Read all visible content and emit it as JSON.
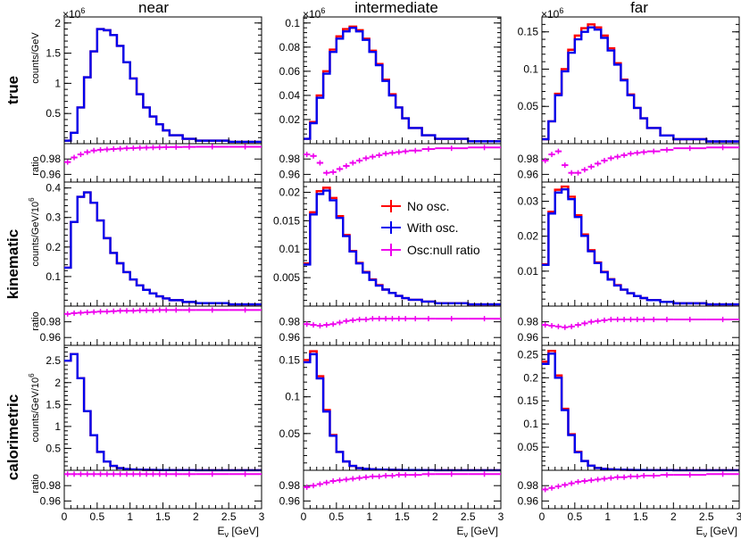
{
  "chart_data": {
    "type": "histogram-grid",
    "columns": [
      "near",
      "intermediate",
      "far"
    ],
    "rows": [
      "true",
      "kinematic",
      "calorimetric"
    ],
    "xlabel": "Eν [GeV]",
    "xlabel_main": "E",
    "xlabel_sub": "ν",
    "xlabel_unit": " [GeV]",
    "xlim": [
      0,
      3
    ],
    "xticks": [
      "0",
      "0.5",
      "1",
      "1.5",
      "2",
      "2.5",
      "3"
    ],
    "bin_edges": [
      0.0,
      0.1,
      0.2,
      0.3,
      0.4,
      0.5,
      0.6,
      0.7,
      0.8,
      0.9,
      1.0,
      1.1,
      1.2,
      1.3,
      1.4,
      1.5,
      1.6,
      1.8,
      2.0,
      2.5,
      3.0
    ],
    "ylabels": {
      "true": "counts/GeV",
      "kinematic": "counts/GeV/10",
      "calorimetric": "counts/GeV/10",
      "exponent": "6",
      "ratio": "ratio"
    },
    "multiplier_label": "×10",
    "multiplier_exp": "6",
    "ratio_ylim": [
      0.95,
      1.0
    ],
    "ratio_yticks": [
      "0.98",
      "0.96"
    ],
    "legend": [
      {
        "label": "No osc.",
        "color": "#ff0000"
      },
      {
        "label": "With osc.",
        "color": "#0000ee"
      },
      {
        "label": "Osc:null ratio",
        "color": "#ee00ee"
      }
    ],
    "colors": {
      "no_osc": "#ff0000",
      "with_osc": "#0000ee",
      "ratio": "#ee00ee"
    },
    "panels": [
      {
        "row": "true",
        "col": "near",
        "ylim": [
          0,
          2.1
        ],
        "yticks": [
          "0.5",
          "1",
          "1.5",
          "2"
        ],
        "multiplier": true,
        "no_osc": [
          0.05,
          0.18,
          0.6,
          1.1,
          1.53,
          1.9,
          1.88,
          1.8,
          1.62,
          1.35,
          1.08,
          0.82,
          0.6,
          0.45,
          0.32,
          0.22,
          0.14,
          0.08,
          0.05,
          0.03
        ],
        "with_osc": [
          0.05,
          0.18,
          0.6,
          1.1,
          1.53,
          1.9,
          1.88,
          1.8,
          1.62,
          1.35,
          1.08,
          0.82,
          0.6,
          0.45,
          0.32,
          0.22,
          0.14,
          0.08,
          0.05,
          0.03
        ],
        "ratio": [
          0.976,
          0.982,
          0.986,
          0.989,
          0.991,
          0.992,
          0.9925,
          0.993,
          0.9935,
          0.994,
          0.9943,
          0.9946,
          0.9948,
          0.995,
          0.9952,
          0.9954,
          0.9956,
          0.9958,
          0.996,
          0.996
        ]
      },
      {
        "row": "true",
        "col": "intermediate",
        "ylim": [
          0,
          0.105
        ],
        "yticks": [
          "0.02",
          "0.04",
          "0.06",
          "0.08",
          "0.1"
        ],
        "multiplier": true,
        "no_osc": [
          0.004,
          0.018,
          0.04,
          0.06,
          0.078,
          0.089,
          0.095,
          0.097,
          0.094,
          0.087,
          0.077,
          0.066,
          0.053,
          0.041,
          0.03,
          0.021,
          0.013,
          0.007,
          0.004,
          0.002
        ],
        "with_osc": [
          0.004,
          0.017,
          0.038,
          0.058,
          0.076,
          0.087,
          0.093,
          0.096,
          0.093,
          0.086,
          0.076,
          0.065,
          0.052,
          0.04,
          0.03,
          0.021,
          0.013,
          0.007,
          0.004,
          0.002
        ],
        "ratio": [
          0.986,
          0.984,
          0.975,
          0.962,
          0.963,
          0.967,
          0.971,
          0.975,
          0.978,
          0.981,
          0.983,
          0.985,
          0.987,
          0.988,
          0.989,
          0.99,
          0.991,
          0.993,
          0.994,
          0.995
        ]
      },
      {
        "row": "true",
        "col": "far",
        "ylim": [
          0,
          0.17
        ],
        "yticks": [
          "0.05",
          "0.1",
          "0.15"
        ],
        "multiplier": true,
        "no_osc": [
          0.006,
          0.03,
          0.067,
          0.1,
          0.126,
          0.145,
          0.155,
          0.16,
          0.156,
          0.145,
          0.128,
          0.108,
          0.086,
          0.066,
          0.048,
          0.034,
          0.021,
          0.011,
          0.006,
          0.003
        ],
        "with_osc": [
          0.006,
          0.03,
          0.065,
          0.097,
          0.122,
          0.14,
          0.15,
          0.156,
          0.153,
          0.142,
          0.125,
          0.106,
          0.085,
          0.065,
          0.048,
          0.034,
          0.021,
          0.011,
          0.006,
          0.003
        ],
        "ratio": [
          0.978,
          0.986,
          0.99,
          0.972,
          0.962,
          0.962,
          0.966,
          0.97,
          0.974,
          0.978,
          0.981,
          0.983,
          0.985,
          0.987,
          0.988,
          0.989,
          0.99,
          0.992,
          0.994,
          0.995
        ]
      },
      {
        "row": "kinematic",
        "col": "near",
        "ylim": [
          0,
          0.42
        ],
        "yticks": [
          "0.1",
          "0.2",
          "0.3",
          "0.4"
        ],
        "multiplier": false,
        "no_osc": [
          0.13,
          0.285,
          0.37,
          0.385,
          0.35,
          0.29,
          0.23,
          0.18,
          0.145,
          0.115,
          0.09,
          0.07,
          0.055,
          0.043,
          0.033,
          0.026,
          0.02,
          0.014,
          0.01,
          0.006
        ],
        "with_osc": [
          0.13,
          0.285,
          0.37,
          0.385,
          0.35,
          0.29,
          0.23,
          0.18,
          0.145,
          0.115,
          0.09,
          0.07,
          0.055,
          0.043,
          0.033,
          0.026,
          0.02,
          0.014,
          0.01,
          0.006
        ],
        "ratio": [
          0.99,
          0.991,
          0.9915,
          0.992,
          0.9925,
          0.993,
          0.993,
          0.9935,
          0.994,
          0.994,
          0.994,
          0.9945,
          0.9945,
          0.9945,
          0.995,
          0.995,
          0.995,
          0.995,
          0.995,
          0.995
        ]
      },
      {
        "row": "kinematic",
        "col": "intermediate",
        "ylim": [
          0,
          0.0218
        ],
        "yticks": [
          "0.005",
          "0.01",
          "0.015",
          "0.02"
        ],
        "multiplier": false,
        "no_osc": [
          0.0075,
          0.0165,
          0.0202,
          0.0208,
          0.019,
          0.0158,
          0.0125,
          0.0097,
          0.0076,
          0.006,
          0.0047,
          0.0037,
          0.0029,
          0.0023,
          0.0018,
          0.0014,
          0.0011,
          0.0008,
          0.0005,
          0.0003
        ],
        "with_osc": [
          0.0073,
          0.0161,
          0.0197,
          0.0203,
          0.0186,
          0.0155,
          0.0123,
          0.0096,
          0.0075,
          0.0059,
          0.0046,
          0.0036,
          0.0029,
          0.0023,
          0.0018,
          0.0014,
          0.0011,
          0.0008,
          0.0005,
          0.0003
        ],
        "ratio": [
          0.977,
          0.976,
          0.975,
          0.976,
          0.977,
          0.979,
          0.981,
          0.982,
          0.983,
          0.983,
          0.984,
          0.984,
          0.984,
          0.984,
          0.984,
          0.984,
          0.984,
          0.984,
          0.984,
          0.984
        ]
      },
      {
        "row": "kinematic",
        "col": "far",
        "ylim": [
          0,
          0.0355
        ],
        "yticks": [
          "0.01",
          "0.02",
          "0.03"
        ],
        "multiplier": false,
        "no_osc": [
          0.012,
          0.027,
          0.0333,
          0.0342,
          0.0313,
          0.026,
          0.0205,
          0.016,
          0.0125,
          0.0098,
          0.0077,
          0.006,
          0.0047,
          0.0037,
          0.0029,
          0.0023,
          0.0017,
          0.0012,
          0.0008,
          0.0005
        ],
        "with_osc": [
          0.0118,
          0.0265,
          0.0325,
          0.0334,
          0.0306,
          0.0255,
          0.0201,
          0.0157,
          0.0123,
          0.0097,
          0.0076,
          0.0059,
          0.0047,
          0.0037,
          0.0029,
          0.0023,
          0.0017,
          0.0012,
          0.0008,
          0.0005
        ],
        "ratio": [
          0.976,
          0.975,
          0.974,
          0.973,
          0.974,
          0.976,
          0.978,
          0.98,
          0.981,
          0.982,
          0.983,
          0.983,
          0.983,
          0.983,
          0.983,
          0.983,
          0.983,
          0.983,
          0.983,
          0.983
        ]
      },
      {
        "row": "calorimetric",
        "col": "near",
        "ylim": [
          0,
          2.85
        ],
        "yticks": [
          "0.5",
          "1",
          "1.5",
          "2",
          "2.5"
        ],
        "multiplier": false,
        "no_osc": [
          2.5,
          2.65,
          2.1,
          1.35,
          0.8,
          0.42,
          0.2,
          0.1,
          0.05,
          0.03,
          0.02,
          0.015,
          0.01,
          0.008,
          0.006,
          0.005,
          0.004,
          0.003,
          0.002,
          0.001
        ],
        "with_osc": [
          2.5,
          2.65,
          2.1,
          1.35,
          0.8,
          0.42,
          0.2,
          0.1,
          0.05,
          0.03,
          0.02,
          0.015,
          0.01,
          0.008,
          0.006,
          0.005,
          0.004,
          0.003,
          0.002,
          0.001
        ],
        "ratio": [
          0.995,
          0.995,
          0.995,
          0.995,
          0.995,
          0.995,
          0.995,
          0.995,
          0.995,
          0.995,
          0.995,
          0.995,
          0.995,
          0.995,
          0.995,
          0.995,
          0.995,
          0.995,
          0.995,
          0.995
        ]
      },
      {
        "row": "calorimetric",
        "col": "intermediate",
        "ylim": [
          0,
          0.17
        ],
        "yticks": [
          "0.05",
          "0.1",
          "0.15"
        ],
        "multiplier": false,
        "no_osc": [
          0.15,
          0.162,
          0.128,
          0.082,
          0.048,
          0.025,
          0.012,
          0.006,
          0.003,
          0.002,
          0.0015,
          0.001,
          0.0008,
          0.0006,
          0.0005,
          0.0004,
          0.0003,
          0.0002,
          0.0001,
          0.0001
        ],
        "with_osc": [
          0.147,
          0.158,
          0.125,
          0.08,
          0.047,
          0.025,
          0.012,
          0.006,
          0.003,
          0.002,
          0.0015,
          0.001,
          0.0008,
          0.0006,
          0.0005,
          0.0004,
          0.0003,
          0.0002,
          0.0001,
          0.0001
        ],
        "ratio": [
          0.978,
          0.98,
          0.982,
          0.984,
          0.986,
          0.987,
          0.988,
          0.989,
          0.99,
          0.991,
          0.992,
          0.992,
          0.993,
          0.993,
          0.994,
          0.994,
          0.994,
          0.995,
          0.995,
          0.995
        ]
      },
      {
        "row": "calorimetric",
        "col": "far",
        "ylim": [
          0,
          0.27
        ],
        "yticks": [
          "0.05",
          "0.1",
          "0.15",
          "0.2",
          "0.25"
        ],
        "multiplier": false,
        "no_osc": [
          0.235,
          0.258,
          0.205,
          0.133,
          0.078,
          0.04,
          0.02,
          0.01,
          0.005,
          0.003,
          0.002,
          0.0015,
          0.001,
          0.0008,
          0.0006,
          0.0005,
          0.0004,
          0.0003,
          0.0002,
          0.0001
        ],
        "with_osc": [
          0.23,
          0.252,
          0.2,
          0.13,
          0.076,
          0.039,
          0.02,
          0.01,
          0.005,
          0.003,
          0.002,
          0.0015,
          0.001,
          0.0008,
          0.0006,
          0.0005,
          0.0004,
          0.0003,
          0.0002,
          0.0001
        ],
        "ratio": [
          0.975,
          0.977,
          0.979,
          0.981,
          0.983,
          0.985,
          0.986,
          0.987,
          0.988,
          0.989,
          0.99,
          0.991,
          0.991,
          0.992,
          0.992,
          0.993,
          0.993,
          0.994,
          0.994,
          0.995
        ]
      }
    ]
  }
}
